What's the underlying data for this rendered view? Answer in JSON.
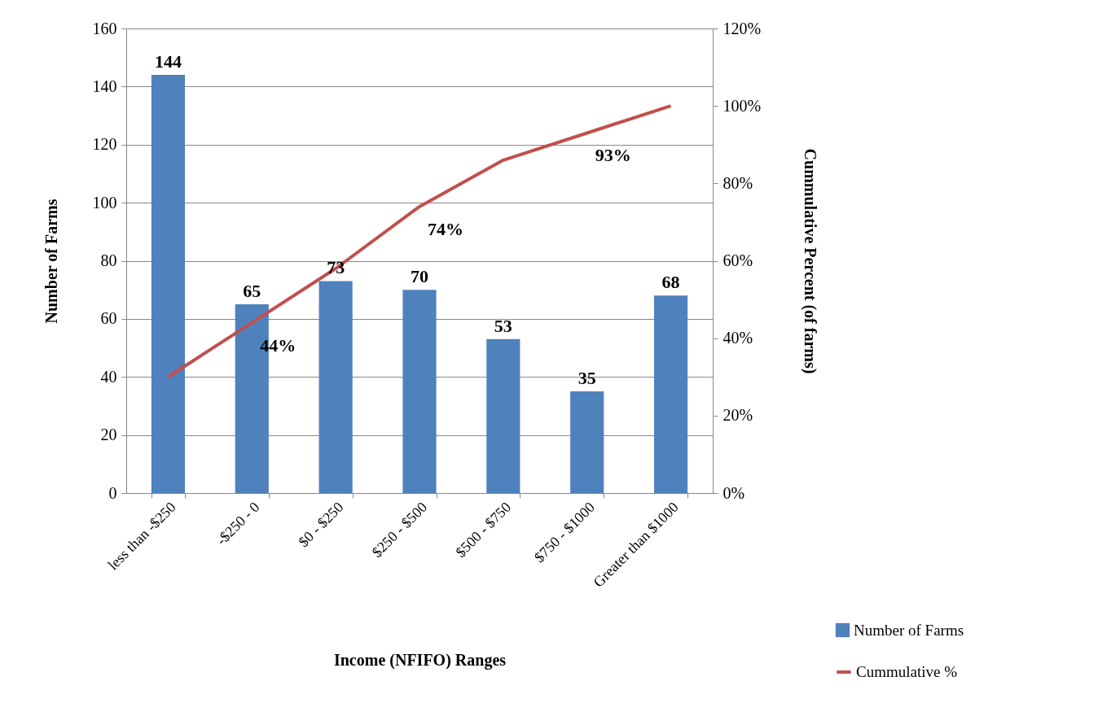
{
  "chart_data": {
    "type": "bar",
    "xlabel": "Income (NFIFO)  Ranges",
    "ylabel": "Number of Farms",
    "y2label": "Cummulative Percent (of farms)",
    "categories": [
      "less than -$250",
      "-$250 - 0",
      "$0 - $250",
      "$250 - $500",
      "$500 - $750",
      "$750 - $1000",
      "Greater than $1000"
    ],
    "series": [
      {
        "name": "Number of Farms",
        "color": "#4f81bd",
        "values": [
          144,
          65,
          73,
          70,
          53,
          35,
          68
        ],
        "value_labels": [
          "144",
          "65",
          "73",
          "70",
          "53",
          "35",
          "68"
        ]
      },
      {
        "name": "Cummulative %",
        "type": "line",
        "axis": "y2",
        "color": "#c0504d",
        "values": [
          30,
          44,
          58,
          74,
          86,
          93,
          100
        ],
        "value_labels": [
          null,
          "44%",
          null,
          "74%",
          null,
          "93%",
          null
        ]
      }
    ],
    "ylim": [
      0,
      160
    ],
    "yticks": [
      0,
      20,
      40,
      60,
      80,
      100,
      120,
      140,
      160
    ],
    "y2lim": [
      0,
      120
    ],
    "y2ticks": [
      {
        "value": 0,
        "label": "0%"
      },
      {
        "value": 20,
        "label": "20%"
      },
      {
        "value": 40,
        "label": "40%"
      },
      {
        "value": 60,
        "label": "60%"
      },
      {
        "value": 80,
        "label": "80%"
      },
      {
        "value": 100,
        "label": "100%"
      },
      {
        "value": 120,
        "label": "120%"
      }
    ],
    "grid": "y",
    "legend": "bottom right",
    "marker": "none",
    "line_style": "solid"
  }
}
